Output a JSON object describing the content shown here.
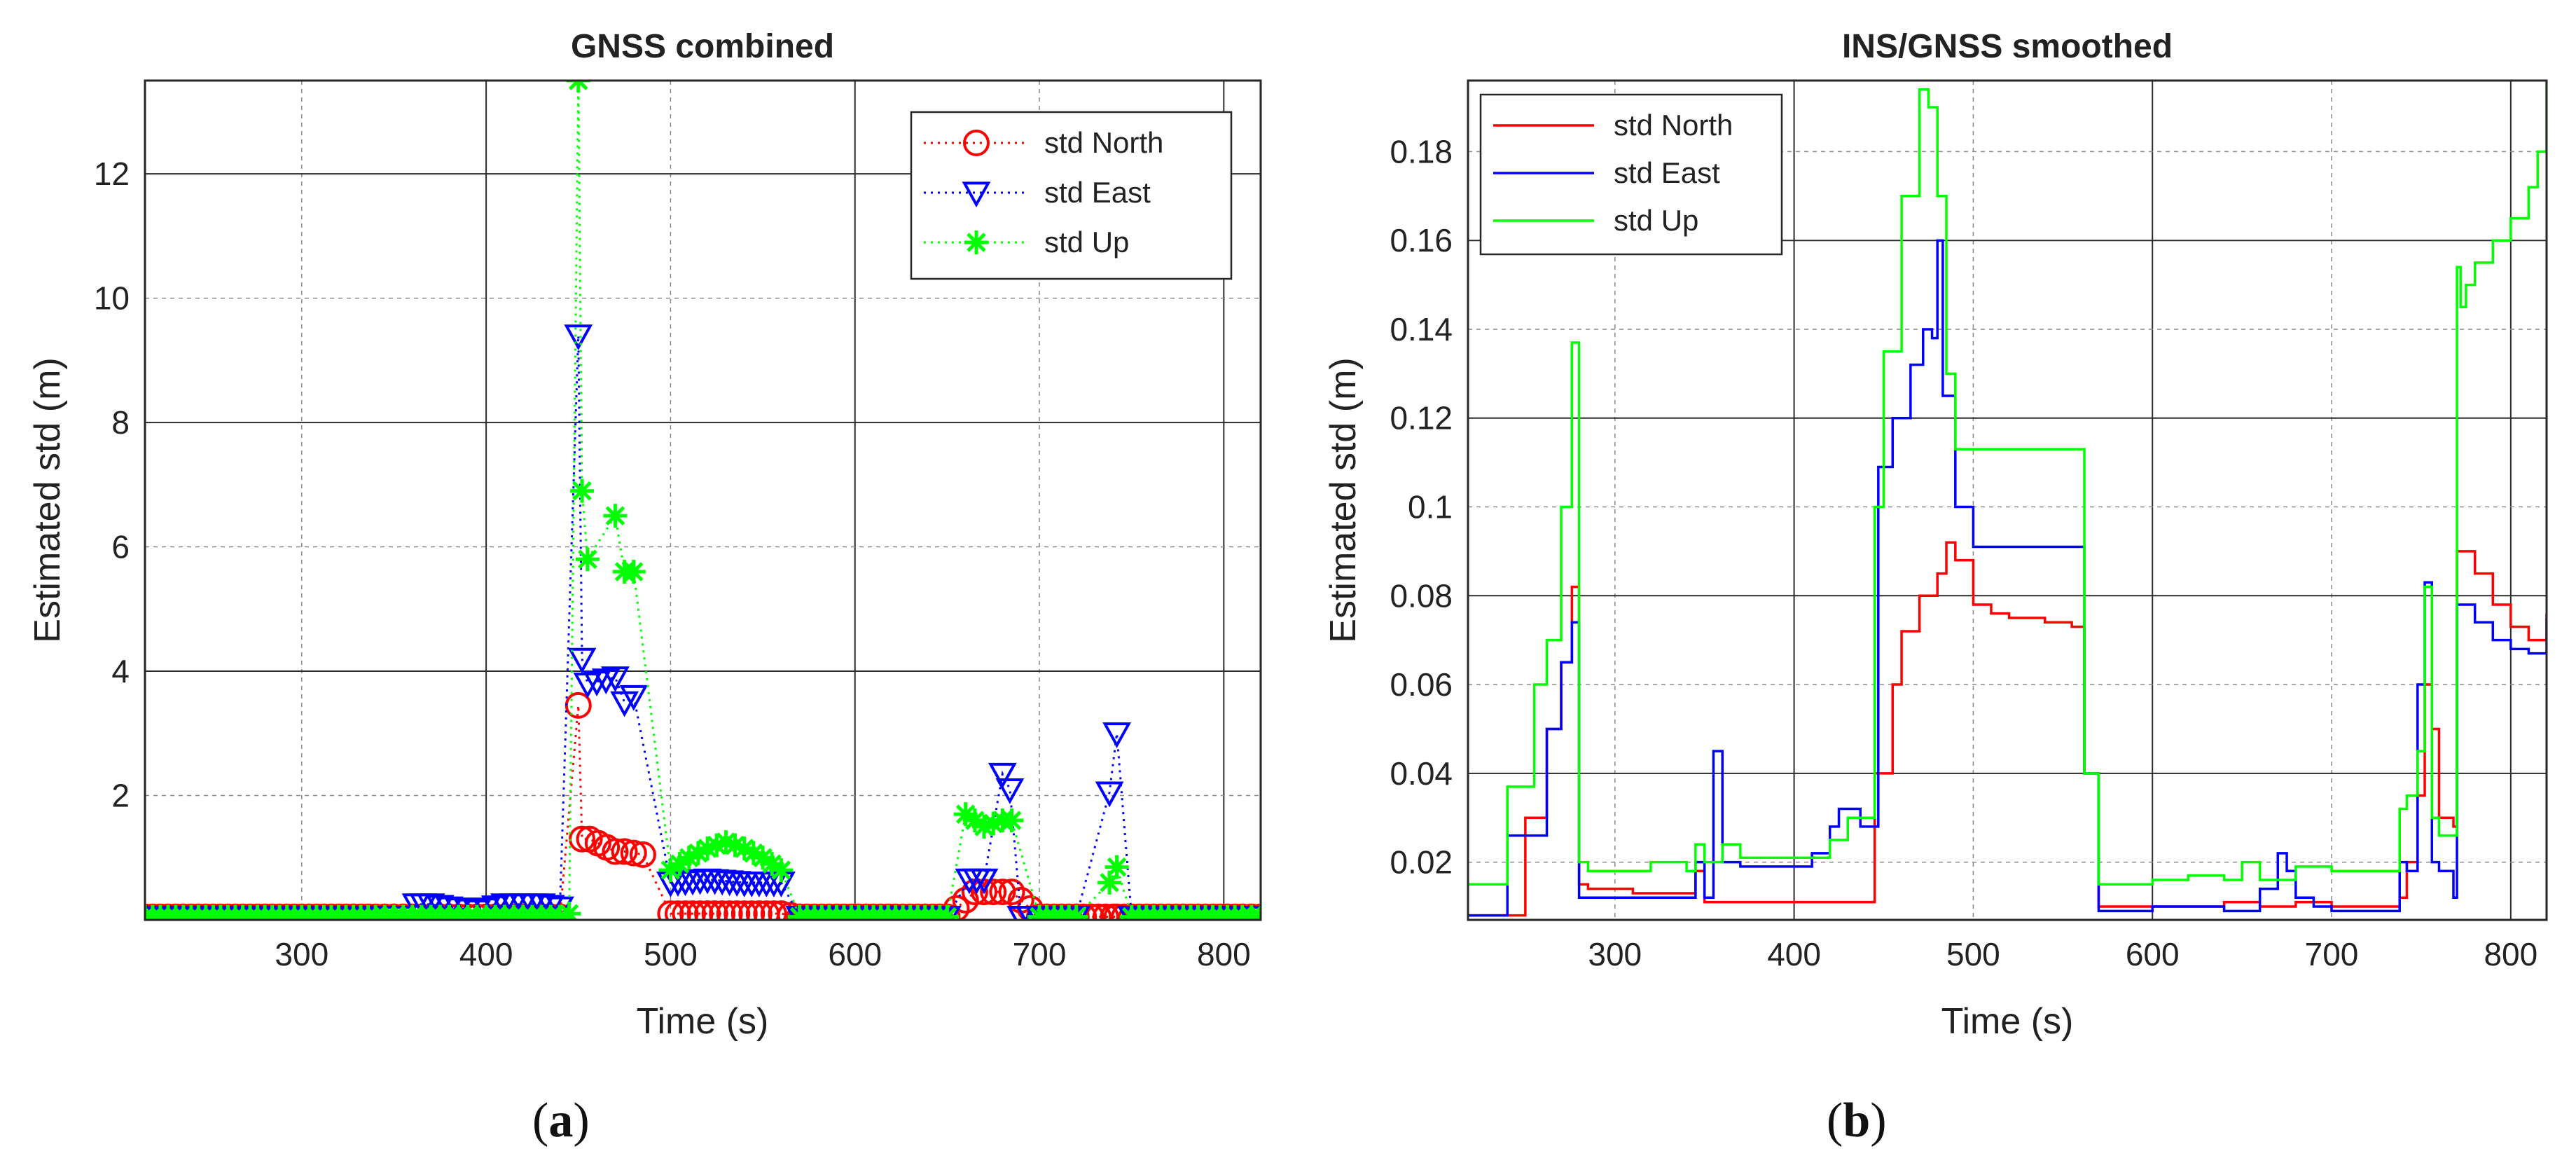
{
  "chart_data": [
    {
      "type": "scatter",
      "title": "GNSS combined",
      "xlabel": "Time (s)",
      "ylabel": "Estimated std (m)",
      "xlim": [
        215,
        820
      ],
      "ylim": [
        0,
        13.5
      ],
      "xticks": [
        300,
        400,
        500,
        600,
        700,
        800
      ],
      "yticks": [
        2,
        4,
        6,
        8,
        10,
        12
      ],
      "grid": "dashed minor, solid major",
      "legend_position": "top-right",
      "caption": {
        "open": "(",
        "letter": "a",
        "close": ")"
      },
      "series": [
        {
          "name": "std North",
          "color": "#ff0000",
          "marker": "circle",
          "line": "dotted",
          "x": [
            215,
            240,
            260,
            280,
            300,
            320,
            340,
            355,
            370,
            380,
            395,
            410,
            420,
            430,
            440,
            450,
            452,
            456,
            470,
            475,
            485,
            500,
            520,
            540,
            560,
            570,
            590,
            610,
            630,
            650,
            665,
            670,
            685,
            700,
            720,
            740,
            742,
            750,
            770,
            790,
            810,
            820
          ],
          "y": [
            0.05,
            0.05,
            0.05,
            0.05,
            0.05,
            0.05,
            0.05,
            0.05,
            0.05,
            0.05,
            0.05,
            0.05,
            0.05,
            0.05,
            0.05,
            3.45,
            1.3,
            1.3,
            1.1,
            1.1,
            1.05,
            0.1,
            0.1,
            0.1,
            0.1,
            0.05,
            0.05,
            0.05,
            0.05,
            0.05,
            0.45,
            0.45,
            0.45,
            0.05,
            0.05,
            0.05,
            0.05,
            0.05,
            0.05,
            0.05,
            0.05,
            0.05
          ]
        },
        {
          "name": "std East",
          "color": "#0000ff",
          "marker": "triangle-down",
          "line": "dotted",
          "x": [
            215,
            240,
            260,
            280,
            300,
            320,
            340,
            355,
            362,
            370,
            380,
            395,
            410,
            420,
            430,
            440,
            450,
            452,
            455,
            470,
            475,
            480,
            500,
            520,
            540,
            560,
            570,
            590,
            610,
            630,
            650,
            662,
            670,
            680,
            684,
            690,
            700,
            720,
            738,
            742,
            750,
            770,
            790,
            810,
            820
          ],
          "y": [
            0.05,
            0.05,
            0.05,
            0.05,
            0.05,
            0.05,
            0.05,
            0.05,
            0.25,
            0.25,
            0.2,
            0.15,
            0.25,
            0.25,
            0.25,
            0.2,
            9.4,
            4.2,
            3.8,
            3.9,
            3.5,
            3.6,
            0.6,
            0.65,
            0.6,
            0.6,
            0.05,
            0.05,
            0.05,
            0.05,
            0.05,
            0.65,
            0.65,
            2.35,
            2.1,
            0.05,
            0.05,
            0.05,
            2.05,
            3.0,
            0.05,
            0.05,
            0.05,
            0.05,
            0.05
          ]
        },
        {
          "name": "std Up",
          "color": "#00ff00",
          "marker": "asterisk",
          "line": "dotted",
          "x": [
            215,
            240,
            260,
            280,
            300,
            320,
            340,
            355,
            370,
            380,
            395,
            410,
            420,
            430,
            440,
            445,
            450,
            452,
            455,
            470,
            475,
            480,
            500,
            510,
            520,
            530,
            540,
            550,
            560,
            570,
            590,
            610,
            630,
            650,
            660,
            670,
            680,
            685,
            700,
            720,
            738,
            742,
            750,
            770,
            790,
            810,
            820
          ],
          "y": [
            0.05,
            0.05,
            0.05,
            0.05,
            0.05,
            0.05,
            0.05,
            0.05,
            0.05,
            0.05,
            0.05,
            0.05,
            0.05,
            0.05,
            0.05,
            0.1,
            13.5,
            6.9,
            5.8,
            6.5,
            5.6,
            5.6,
            0.8,
            1.0,
            1.15,
            1.25,
            1.15,
            1.0,
            0.8,
            0.05,
            0.05,
            0.05,
            0.05,
            0.05,
            1.7,
            1.5,
            1.6,
            1.6,
            0.05,
            0.05,
            0.6,
            0.85,
            0.05,
            0.05,
            0.05,
            0.05,
            0.05
          ]
        }
      ]
    },
    {
      "type": "line",
      "title": "INS/GNSS smoothed",
      "xlabel": "Time (s)",
      "ylabel": "Estimated std (m)",
      "xlim": [
        218,
        820
      ],
      "ylim": [
        0.007,
        0.196
      ],
      "xticks": [
        300,
        400,
        500,
        600,
        700,
        800
      ],
      "yticks": [
        0.02,
        0.04,
        0.06,
        0.08,
        0.1,
        0.12,
        0.14,
        0.16,
        0.18
      ],
      "grid": "dashed minor, solid major",
      "legend_position": "top-left",
      "caption": {
        "open": "(",
        "letter": "b",
        "close": ")"
      },
      "series": [
        {
          "name": "std North",
          "color": "#ff0000",
          "x": [
            218,
            230,
            240,
            250,
            262,
            270,
            276,
            280,
            285,
            300,
            310,
            320,
            330,
            340,
            345,
            350,
            360,
            380,
            400,
            420,
            430,
            437,
            445,
            455,
            460,
            470,
            480,
            485,
            490,
            500,
            510,
            520,
            540,
            555,
            562,
            570,
            580,
            600,
            620,
            640,
            660,
            680,
            700,
            720,
            738,
            742,
            748,
            752,
            756,
            760,
            764,
            768,
            770,
            772,
            780,
            790,
            800,
            810,
            820
          ],
          "y": [
            0.008,
            0.008,
            0.008,
            0.03,
            0.05,
            0.065,
            0.082,
            0.015,
            0.014,
            0.014,
            0.013,
            0.013,
            0.013,
            0.013,
            0.018,
            0.011,
            0.011,
            0.011,
            0.011,
            0.011,
            0.011,
            0.011,
            0.04,
            0.06,
            0.072,
            0.08,
            0.085,
            0.092,
            0.088,
            0.078,
            0.076,
            0.075,
            0.074,
            0.073,
            0.04,
            0.01,
            0.01,
            0.01,
            0.01,
            0.011,
            0.01,
            0.011,
            0.01,
            0.01,
            0.012,
            0.02,
            0.035,
            0.06,
            0.05,
            0.03,
            0.03,
            0.028,
            0.09,
            0.09,
            0.085,
            0.078,
            0.073,
            0.07,
            0.076
          ]
        },
        {
          "name": "std East",
          "color": "#0000ff",
          "x": [
            218,
            230,
            240,
            250,
            262,
            270,
            276,
            280,
            285,
            300,
            320,
            340,
            345,
            350,
            355,
            360,
            370,
            380,
            400,
            410,
            420,
            425,
            430,
            437,
            447,
            455,
            465,
            472,
            477,
            480,
            483,
            490,
            500,
            510,
            520,
            540,
            555,
            562,
            570,
            580,
            600,
            620,
            640,
            660,
            670,
            675,
            680,
            690,
            700,
            720,
            738,
            742,
            748,
            752,
            756,
            760,
            764,
            768,
            770,
            772,
            780,
            790,
            800,
            810,
            820
          ],
          "y": [
            0.008,
            0.008,
            0.026,
            0.026,
            0.05,
            0.065,
            0.074,
            0.012,
            0.012,
            0.012,
            0.012,
            0.012,
            0.02,
            0.012,
            0.045,
            0.02,
            0.019,
            0.019,
            0.019,
            0.022,
            0.028,
            0.032,
            0.032,
            0.028,
            0.109,
            0.12,
            0.132,
            0.14,
            0.138,
            0.16,
            0.125,
            0.1,
            0.091,
            0.091,
            0.091,
            0.091,
            0.091,
            0.04,
            0.009,
            0.009,
            0.01,
            0.01,
            0.009,
            0.014,
            0.022,
            0.018,
            0.012,
            0.01,
            0.009,
            0.009,
            0.02,
            0.018,
            0.06,
            0.083,
            0.02,
            0.018,
            0.018,
            0.012,
            0.078,
            0.078,
            0.074,
            0.07,
            0.068,
            0.067,
            0.075
          ]
        },
        {
          "name": "std Up",
          "color": "#00ff00",
          "x": [
            218,
            230,
            240,
            250,
            255,
            262,
            270,
            276,
            280,
            285,
            300,
            320,
            340,
            345,
            350,
            355,
            360,
            370,
            380,
            400,
            410,
            420,
            430,
            437,
            445,
            450,
            460,
            470,
            475,
            480,
            485,
            490,
            500,
            510,
            520,
            540,
            555,
            562,
            570,
            580,
            600,
            620,
            640,
            650,
            660,
            680,
            700,
            720,
            738,
            742,
            748,
            752,
            756,
            760,
            764,
            768,
            770,
            772,
            775,
            780,
            790,
            800,
            810,
            815,
            820
          ],
          "y": [
            0.015,
            0.015,
            0.037,
            0.037,
            0.06,
            0.07,
            0.1,
            0.137,
            0.02,
            0.018,
            0.018,
            0.02,
            0.018,
            0.024,
            0.02,
            0.02,
            0.024,
            0.021,
            0.021,
            0.021,
            0.021,
            0.025,
            0.03,
            0.03,
            0.1,
            0.135,
            0.17,
            0.194,
            0.19,
            0.17,
            0.13,
            0.113,
            0.113,
            0.113,
            0.113,
            0.113,
            0.113,
            0.04,
            0.015,
            0.015,
            0.016,
            0.017,
            0.016,
            0.02,
            0.016,
            0.019,
            0.018,
            0.018,
            0.032,
            0.035,
            0.045,
            0.082,
            0.03,
            0.026,
            0.026,
            0.026,
            0.154,
            0.145,
            0.15,
            0.155,
            0.16,
            0.165,
            0.172,
            0.18,
            0.196
          ]
        }
      ]
    }
  ]
}
